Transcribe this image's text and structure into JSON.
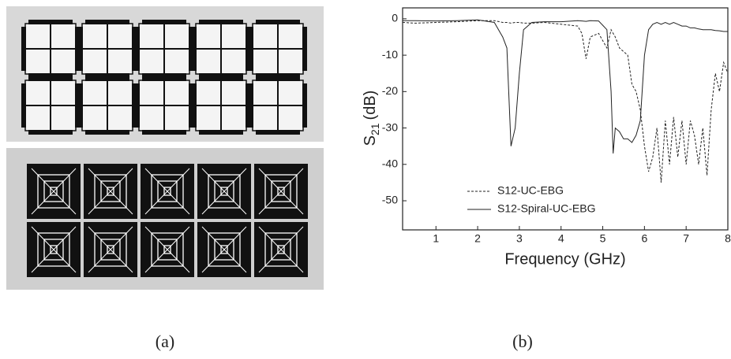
{
  "panel_labels": [
    "(a)",
    "(b)"
  ],
  "chart_data": {
    "type": "line",
    "xlabel": "Frequency (GHz)",
    "ylabel": "S",
    "ylabel_subscript": "21",
    "ylabel_unit": "(dB)",
    "x": [
      0.2,
      0.5,
      1,
      1.5,
      2,
      2.4,
      2.6,
      2.7,
      2.8,
      2.9,
      3.0,
      3.1,
      3.3,
      3.6,
      4,
      4.4,
      4.5,
      4.6,
      4.7,
      4.9,
      5.1,
      5.2,
      5.25,
      5.3,
      5.4,
      5.5,
      5.6,
      5.7,
      5.8,
      5.9,
      6.0,
      6.1,
      6.2,
      6.3,
      6.4,
      6.5,
      6.6,
      6.7,
      6.8,
      6.9,
      7.0,
      7.1,
      7.2,
      7.3,
      7.4,
      7.5,
      7.6,
      7.7,
      7.8,
      7.9,
      8.0
    ],
    "series": [
      {
        "name": "S12-UC-EBG",
        "color": "#222222",
        "dash": true,
        "values": [
          -1,
          -1.2,
          -1,
          -0.8,
          -0.5,
          -0.5,
          -1,
          -1,
          -1.2,
          -1,
          -1,
          -1.2,
          -1.2,
          -1,
          -1.5,
          -2,
          -4,
          -11,
          -5,
          -4,
          -8,
          -3,
          -4,
          -5,
          -8,
          -9,
          -10,
          -18,
          -20,
          -25,
          -35,
          -42,
          -38,
          -30,
          -45,
          -28,
          -40,
          -27,
          -38,
          -28,
          -40,
          -28,
          -32,
          -40,
          -30,
          -43,
          -25,
          -15,
          -20,
          -12,
          -15
        ]
      },
      {
        "name": "S12-Spiral-UC-EBG",
        "color": "#222222",
        "dash": false,
        "values": [
          -0.5,
          -0.5,
          -0.6,
          -0.5,
          -0.3,
          -1,
          -5,
          -8,
          -35,
          -30,
          -15,
          -3,
          -1,
          -0.8,
          -0.8,
          -0.5,
          -0.6,
          -0.7,
          -0.5,
          -0.6,
          -3,
          -20,
          -37,
          -30,
          -31,
          -33,
          -33,
          -34,
          -32,
          -28,
          -10,
          -3,
          -1.5,
          -1,
          -1.5,
          -1,
          -1.5,
          -1,
          -1.5,
          -2,
          -2,
          -2.5,
          -2.5,
          -2.8,
          -3,
          -3,
          -3,
          -3.2,
          -3.3,
          -3.5,
          -3.5
        ]
      }
    ],
    "xlim": [
      0.2,
      8
    ],
    "xticks": [
      1,
      2,
      3,
      4,
      5,
      6,
      7,
      8
    ],
    "ylim": [
      -58,
      3
    ],
    "yticks": [
      0,
      -10,
      -20,
      -30,
      -40,
      -50
    ],
    "legend": "lower-left"
  }
}
